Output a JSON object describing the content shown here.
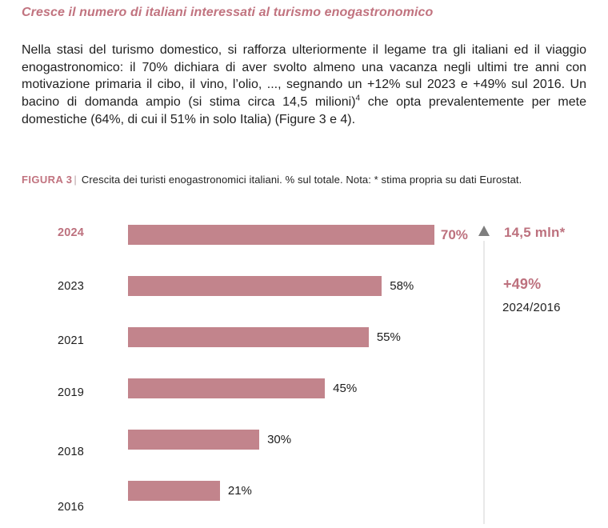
{
  "page": {
    "title": "Cresce il numero di italiani interessati al turismo enogastronomico",
    "intro": {
      "part1": "Nella stasi del turismo domestico, si rafforza ulteriormente il legame tra gli italiani ed il viaggio enogastronomico: il 70% dichiara di aver svolto almeno una vacanza negli ultimi tre anni con motivazione primaria il cibo, il vino, l’olio, ..., segnando un +12% sul 2023 e +49% sul 2016. Un bacino di domanda ampio (si stima circa 14,5 milioni)",
      "footnote_marker": "4",
      "part2": " che opta prevalentemente per mete domestiche (64%, di cui il 51% in solo Italia) (Figure 3 e 4)."
    },
    "figure_caption": {
      "label": "FIGURA 3",
      "separator": "|",
      "text": "Crescita dei turisti enogastronomici italiani. % sul totale. Nota: * stima propria su dati Eurostat."
    }
  },
  "chart_data": {
    "type": "bar",
    "orientation": "horizontal",
    "title": "Crescita dei turisti enogastronomici italiani",
    "unit": "% sul totale",
    "categories": [
      "2024",
      "2023",
      "2021",
      "2019",
      "2018",
      "2016"
    ],
    "values": [
      70,
      58,
      55,
      45,
      30,
      21
    ],
    "value_labels": [
      "70%",
      "58%",
      "55%",
      "45%",
      "30%",
      "21%"
    ],
    "xlim": [
      0,
      100
    ],
    "highlight_category": "2024",
    "bar_color": "#c2848c",
    "accent_text_color": "#bd717e",
    "grid": false,
    "legend": false,
    "annotations": {
      "headline_value": "14,5 mln*",
      "arrow": "up",
      "delta": "+49%",
      "delta_period": "2024/2016"
    }
  }
}
